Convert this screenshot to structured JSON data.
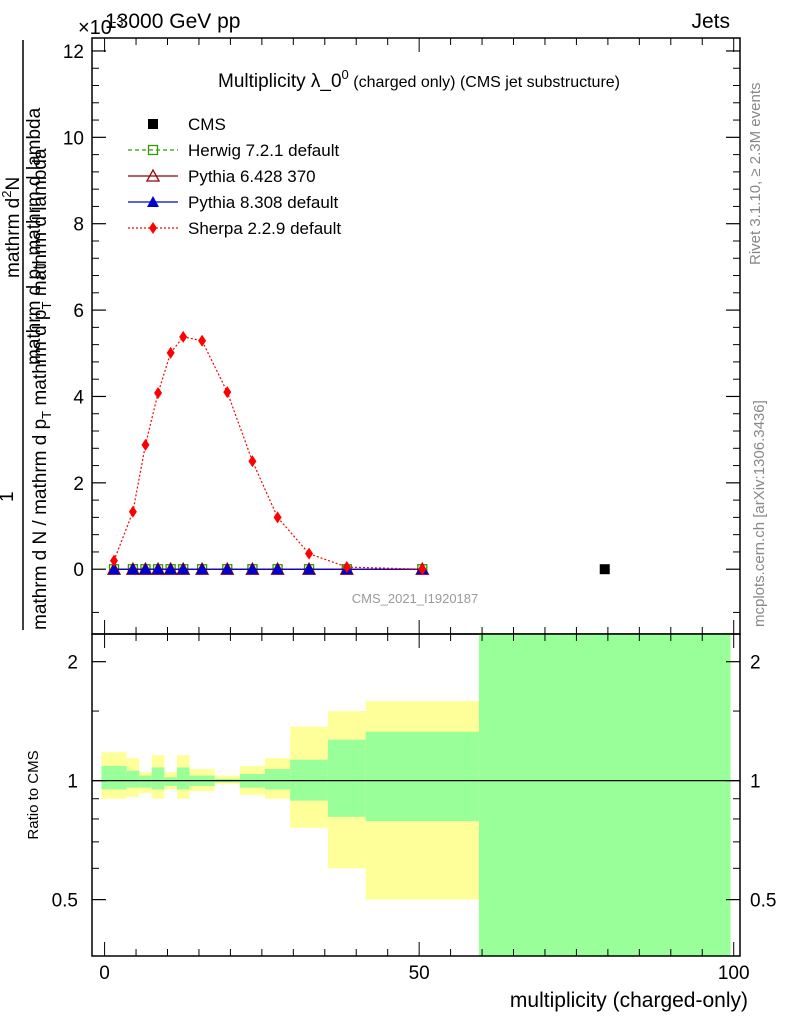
{
  "header": {
    "left": "13000 GeV pp",
    "right": "Jets",
    "exponent": "×10",
    "exponent_power": "-3"
  },
  "side_labels": {
    "rivet": "Rivet 3.1.10, ≥ 2.3M events",
    "mcplots": "mcplots.cern.ch [arXiv:1306.3436]"
  },
  "watermark": "CMS_2021_I1920187",
  "chart_data": [
    {
      "type": "line",
      "title": "Multiplicity λ_0",
      "title_sup": "0",
      "title_suffix": "(charged only) (CMS jet substructure)",
      "ylabel_top_1": "1",
      "ylabel_top_2": "mathrm d",
      "ylabel_top_2_sup": "2",
      "ylabel_top_3": "N",
      "ylabel_num": "mathrm d p",
      "ylabel_num_sub": "T",
      "ylabel_num_tail": "mathrm d lambda",
      "ylabel_den_1": "mathrm d N / mathrm d p",
      "ylabel_den_sub": "T",
      "ylabel_den_tail": "mathrm d p",
      "ylabel_den_sub2": "T",
      "ylabel_den_tail2": "mathrm d lambda",
      "xlim": [
        -2,
        101
      ],
      "ylim": [
        -1.5,
        12.3
      ],
      "yticks": [
        0,
        2,
        4,
        6,
        8,
        10,
        12
      ],
      "ytick_labels": [
        "0",
        "2",
        "4",
        "6",
        "8",
        "10",
        "12"
      ],
      "legend_position": "top-left",
      "series": [
        {
          "name": "CMS",
          "color": "#000000",
          "marker": "square",
          "x": [
            79.5
          ],
          "y": [
            0.0
          ]
        },
        {
          "name": "Herwig 7.2.1 default",
          "color": "#339900",
          "marker": "open-square",
          "line": "dashed",
          "x": [
            1.5,
            4.5,
            6.5,
            8.5,
            10.5,
            12.5,
            15.5,
            19.5,
            23.5,
            27.5,
            32.5,
            38.5,
            50.5
          ],
          "y": [
            0,
            0,
            0,
            0,
            0,
            0,
            0,
            0,
            0,
            0,
            0,
            0,
            0
          ]
        },
        {
          "name": "Pythia 6.428 370",
          "color": "#990000",
          "marker": "open-triangle",
          "line": "solid",
          "x": [
            1.5,
            4.5,
            6.5,
            8.5,
            10.5,
            12.5,
            15.5,
            19.5,
            23.5,
            27.5,
            32.5,
            38.5,
            50.5
          ],
          "y": [
            0,
            0,
            0,
            0,
            0,
            0,
            0,
            0,
            0,
            0,
            0,
            0,
            0
          ]
        },
        {
          "name": "Pythia 8.308 default",
          "color": "#0000cc",
          "marker": "triangle",
          "line": "solid",
          "x": [
            1.5,
            4.5,
            6.5,
            8.5,
            10.5,
            12.5,
            15.5,
            19.5,
            23.5,
            27.5,
            32.5,
            38.5,
            50.5
          ],
          "y": [
            0,
            0,
            0,
            0,
            0,
            0,
            0,
            0,
            0,
            0,
            0,
            0,
            0
          ]
        },
        {
          "name": "Sherpa 2.2.9 default",
          "color": "#ff0000",
          "marker": "diamond",
          "line": "dotted",
          "x": [
            1.5,
            4.5,
            6.5,
            8.5,
            10.5,
            12.5,
            15.5,
            19.5,
            23.5,
            27.5,
            32.5,
            38.5,
            50.5
          ],
          "y": [
            0.2,
            1.33,
            2.88,
            4.08,
            5.01,
            5.38,
            5.29,
            4.1,
            2.5,
            1.2,
            0.36,
            0.05,
            0.0
          ]
        }
      ]
    },
    {
      "type": "area",
      "ylabel": "Ratio to CMS",
      "xlabel": "multiplicity (charged-only)",
      "xlim": [
        -2,
        101
      ],
      "xticks": [
        0,
        50,
        100
      ],
      "xtick_labels": [
        "0",
        "50",
        "100"
      ],
      "ylim": [
        0.36,
        2.35
      ],
      "yticks": [
        0.5,
        1,
        2
      ],
      "ytick_labels": [
        "0.5",
        "1",
        "2"
      ],
      "reference_line": 1.0,
      "bands": [
        {
          "x0": -0.5,
          "x1": 3.5,
          "yellow": [
            0.9,
            1.18
          ],
          "green": [
            0.95,
            1.09
          ]
        },
        {
          "x0": 3.5,
          "x1": 5.5,
          "yellow": [
            0.91,
            1.14
          ],
          "green": [
            0.96,
            1.06
          ]
        },
        {
          "x0": 5.5,
          "x1": 7.5,
          "yellow": [
            0.93,
            1.05
          ],
          "green": [
            0.96,
            1.03
          ]
        },
        {
          "x0": 7.5,
          "x1": 9.5,
          "yellow": [
            0.9,
            1.16
          ],
          "green": [
            0.95,
            1.08
          ]
        },
        {
          "x0": 9.5,
          "x1": 11.5,
          "yellow": [
            0.95,
            1.05
          ],
          "green": [
            0.97,
            1.02
          ]
        },
        {
          "x0": 11.5,
          "x1": 13.5,
          "yellow": [
            0.9,
            1.16
          ],
          "green": [
            0.95,
            1.08
          ]
        },
        {
          "x0": 13.5,
          "x1": 17.5,
          "yellow": [
            0.94,
            1.07
          ],
          "green": [
            0.97,
            1.03
          ]
        },
        {
          "x0": 17.5,
          "x1": 21.5,
          "yellow": [
            0.98,
            1.03
          ],
          "green": [
            0.99,
            1.01
          ]
        },
        {
          "x0": 21.5,
          "x1": 25.5,
          "yellow": [
            0.92,
            1.09
          ],
          "green": [
            0.96,
            1.04
          ]
        },
        {
          "x0": 25.5,
          "x1": 29.5,
          "yellow": [
            0.9,
            1.14
          ],
          "green": [
            0.95,
            1.07
          ]
        },
        {
          "x0": 29.5,
          "x1": 35.5,
          "yellow": [
            0.76,
            1.37
          ],
          "green": [
            0.89,
            1.13
          ]
        },
        {
          "x0": 35.5,
          "x1": 41.5,
          "yellow": [
            0.6,
            1.5
          ],
          "green": [
            0.81,
            1.27
          ]
        },
        {
          "x0": 41.5,
          "x1": 59.5,
          "yellow": [
            0.5,
            1.59
          ],
          "green": [
            0.79,
            1.33
          ]
        },
        {
          "x0": 59.5,
          "x1": 99.5,
          "yellow": [
            0.36,
            2.35
          ],
          "green": [
            0.36,
            2.35
          ]
        }
      ]
    }
  ]
}
